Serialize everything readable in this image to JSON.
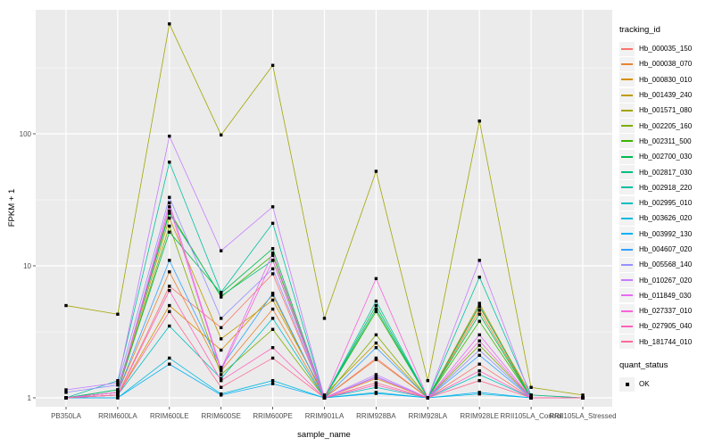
{
  "figure": {
    "background": "#FFFFFF",
    "panel_background": "#EBEBEB",
    "gridline_color": "#FFFFFF",
    "axis_text_color": "#4D4D4D",
    "tick_color": "#333333",
    "point_color": "#000000"
  },
  "legend": {
    "tracking_title": "tracking_id",
    "quant_title": "quant_status",
    "quant_items": [
      {
        "label": "OK",
        "marker": "black-square"
      }
    ]
  },
  "chart_data": {
    "type": "line",
    "title": "",
    "x_axis_label": "sample_name",
    "y_axis_label": "FPKM + 1",
    "y_scale": "log10",
    "y_ticks": [
      1,
      10,
      100
    ],
    "ylim": [
      0.87,
      870
    ],
    "grid": "white-on-gray",
    "legend_position": "right",
    "point_marker": "filled-black-square",
    "categories": [
      "PB350LA",
      "RRIM600LA",
      "RRIM600LE",
      "RRIM600SE",
      "RRIM600PE",
      "RRIM901LA",
      "RRIM928BA",
      "RRIM928LA",
      "RRIM928LE",
      "RRII105LA_Control",
      "RRII105LA_Stressed"
    ],
    "series": [
      {
        "name": "Hb_000035_150",
        "color": "#F8766D",
        "values": [
          1.0,
          1.05,
          7.0,
          3.4,
          8.7,
          1.0,
          2.0,
          1.0,
          1.8,
          1.0,
          1.0
        ]
      },
      {
        "name": "Hb_000038_070",
        "color": "#EA8331",
        "values": [
          1.0,
          1.1,
          9.0,
          1.6,
          4.7,
          1.0,
          1.95,
          1.0,
          4.6,
          1.0,
          1.0
        ]
      },
      {
        "name": "Hb_000830_010",
        "color": "#D89000",
        "values": [
          1.0,
          1.05,
          5.0,
          2.3,
          6.0,
          1.0,
          1.4,
          1.0,
          4.9,
          1.05,
          1.0
        ]
      },
      {
        "name": "Hb_001439_240",
        "color": "#C09B00",
        "values": [
          1.0,
          1.1,
          23.0,
          2.8,
          5.5,
          1.05,
          2.6,
          1.0,
          5.2,
          1.0,
          1.0
        ]
      },
      {
        "name": "Hb_001571_080",
        "color": "#A3A500",
        "values": [
          5.0,
          4.3,
          680,
          98,
          330,
          4.0,
          52,
          1.35,
          125,
          1.2,
          1.05
        ]
      },
      {
        "name": "Hb_002205_160",
        "color": "#7CAE00",
        "values": [
          1.0,
          1.1,
          20.0,
          1.5,
          3.3,
          1.0,
          3.0,
          1.0,
          2.5,
          1.0,
          1.0
        ]
      },
      {
        "name": "Hb_002311_500",
        "color": "#39B600",
        "values": [
          1.0,
          1.15,
          26.0,
          5.8,
          12.0,
          1.0,
          4.5,
          1.0,
          3.8,
          1.0,
          1.0
        ]
      },
      {
        "name": "Hb_002700_030",
        "color": "#00BB4E",
        "values": [
          1.0,
          1.15,
          18.0,
          6.2,
          13.5,
          1.0,
          5.0,
          1.0,
          4.3,
          1.0,
          1.0
        ]
      },
      {
        "name": "Hb_002817_030",
        "color": "#00BF7D",
        "values": [
          1.0,
          1.15,
          25.0,
          5.9,
          11.0,
          1.0,
          4.7,
          1.0,
          5.0,
          1.0,
          1.0
        ]
      },
      {
        "name": "Hb_002918_220",
        "color": "#00C1A3",
        "values": [
          1.0,
          1.35,
          61.0,
          6.3,
          21.0,
          1.0,
          5.4,
          1.0,
          8.2,
          1.05,
          1.0
        ]
      },
      {
        "name": "Hb_002995_010",
        "color": "#00BFC4",
        "values": [
          1.0,
          1.05,
          3.5,
          1.4,
          4.0,
          1.0,
          1.2,
          1.0,
          1.5,
          1.0,
          1.0
        ]
      },
      {
        "name": "Hb_003626_020",
        "color": "#00BAE0",
        "values": [
          1.0,
          1.0,
          2.0,
          1.07,
          1.35,
          1.0,
          1.1,
          1.0,
          1.07,
          1.0,
          1.0
        ]
      },
      {
        "name": "Hb_003992_130",
        "color": "#00B0F6",
        "values": [
          1.0,
          1.0,
          1.8,
          1.05,
          1.28,
          1.0,
          1.08,
          1.0,
          1.1,
          1.0,
          1.0
        ]
      },
      {
        "name": "Hb_004607_020",
        "color": "#35A2FF",
        "values": [
          1.0,
          1.1,
          11.0,
          1.7,
          6.2,
          1.0,
          2.4,
          1.0,
          2.1,
          1.0,
          1.0
        ]
      },
      {
        "name": "Hb_005568_140",
        "color": "#9590FF",
        "values": [
          1.1,
          1.25,
          33.0,
          4.0,
          9.5,
          1.0,
          1.45,
          1.0,
          2.3,
          1.0,
          1.0
        ]
      },
      {
        "name": "Hb_010267_020",
        "color": "#C77CFF",
        "values": [
          1.15,
          1.3,
          96.0,
          13.0,
          28.0,
          1.0,
          1.5,
          1.0,
          11.0,
          1.0,
          1.0
        ]
      },
      {
        "name": "Hb_011849_030",
        "color": "#E76BF3",
        "values": [
          1.0,
          1.1,
          30.0,
          1.65,
          12.5,
          1.0,
          1.43,
          1.0,
          3.0,
          1.0,
          1.0
        ]
      },
      {
        "name": "Hb_027337_010",
        "color": "#FA62DB",
        "values": [
          1.0,
          1.1,
          28.0,
          1.6,
          11.0,
          1.0,
          8.0,
          1.0,
          2.7,
          1.0,
          1.0
        ]
      },
      {
        "name": "Hb_027905_040",
        "color": "#FF62BC",
        "values": [
          1.0,
          1.05,
          6.5,
          1.35,
          2.4,
          1.0,
          1.25,
          1.0,
          1.6,
          1.0,
          1.0
        ]
      },
      {
        "name": "Hb_181744_010",
        "color": "#FF6A98",
        "values": [
          1.0,
          1.05,
          4.5,
          1.2,
          2.0,
          1.0,
          1.3,
          1.0,
          1.35,
          1.0,
          1.0
        ]
      }
    ]
  }
}
